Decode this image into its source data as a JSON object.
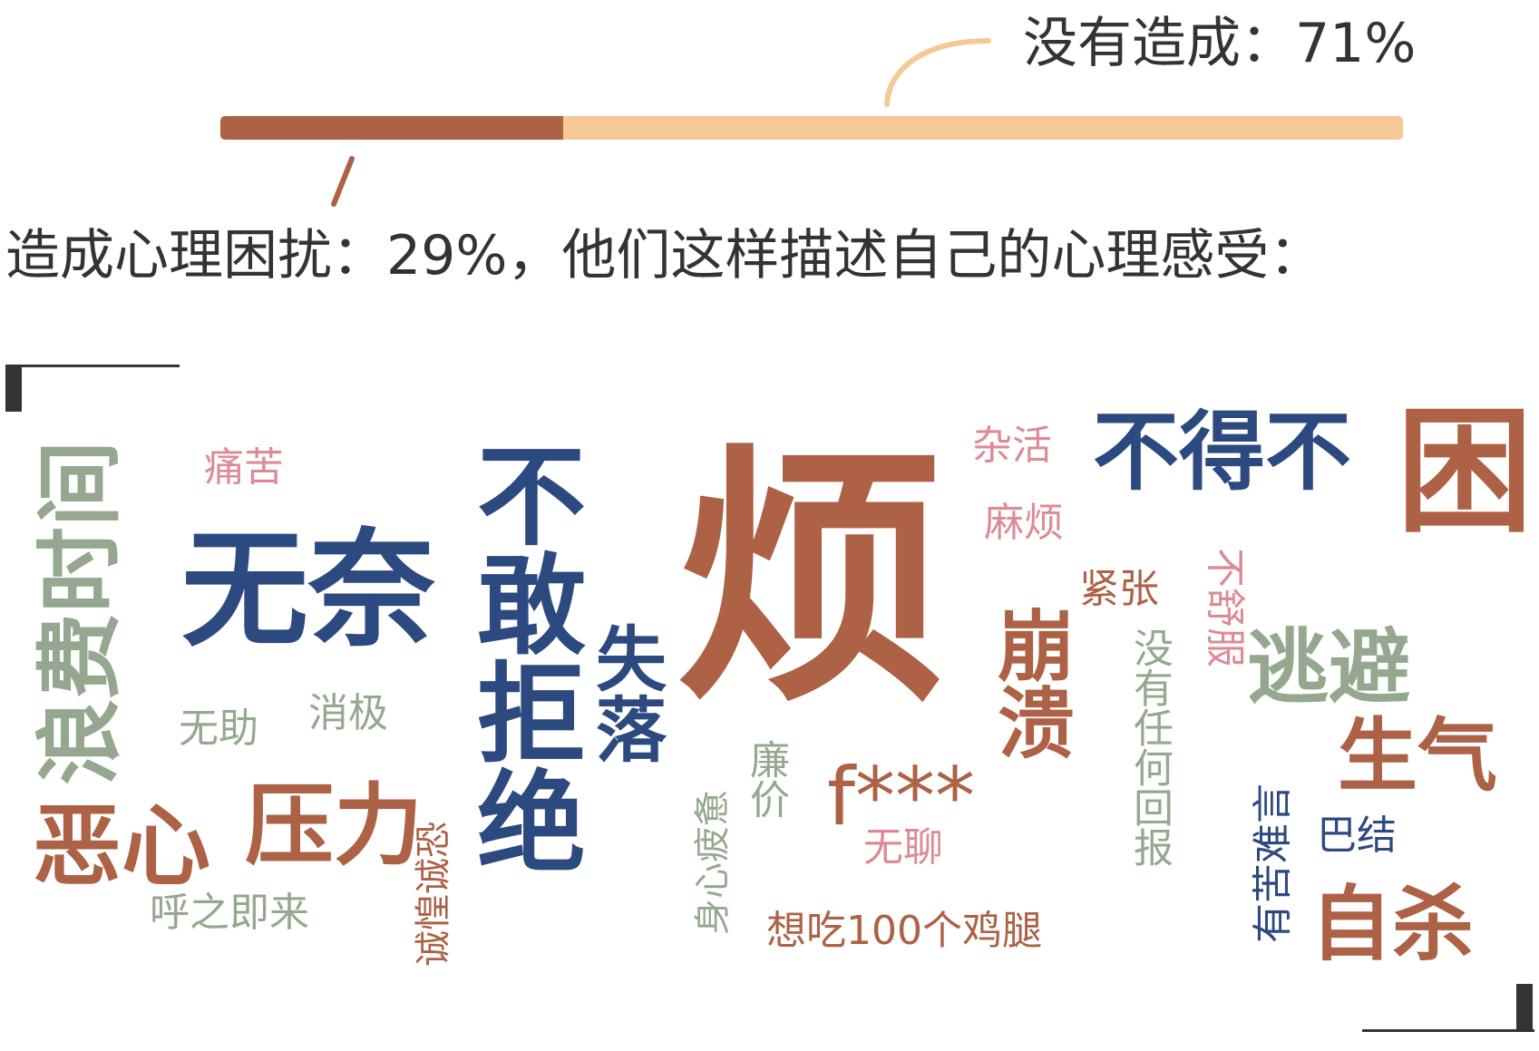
{
  "summary": {
    "not_caused_label": "没有造成：71%",
    "caused_label": "造成心理困扰：29%，他们这样描述自己的心理感受：",
    "caused_percent": 29,
    "not_caused_percent": 71
  },
  "colors": {
    "rust": "#ad6145",
    "navy": "#2d4a80",
    "sage": "#95a88f",
    "pink": "#de8a96",
    "peach": "#f5c896"
  },
  "words": {
    "fan": "烦",
    "budebu": "不得不",
    "kun": "困",
    "wunai": "无奈",
    "langfei": "浪费时间",
    "bugan": "不敢拒绝",
    "shiluo": "失落",
    "tongku": "痛苦",
    "zahuo": "杂活",
    "mafan": "麻烦",
    "jinzhang": "紧张",
    "bengkui": "崩溃",
    "taobi": "逃避",
    "shengqi": "生气",
    "bushufu": "不舒服",
    "meiyou": "没有任何回报",
    "ezhe": "恶心",
    "yali": "压力",
    "wuzhu": "无助",
    "xiaoji": "消极",
    "fstar": "f***",
    "lianjia": "廉价",
    "wuliao": "无聊",
    "bajie": "巴结",
    "youku": "有苦难言",
    "zisha": "自杀",
    "huzhi": "呼之即来",
    "chengkong": "诚惶诚恐",
    "shenxin": "身心疲惫",
    "jitui": "想吃100个鸡腿"
  }
}
